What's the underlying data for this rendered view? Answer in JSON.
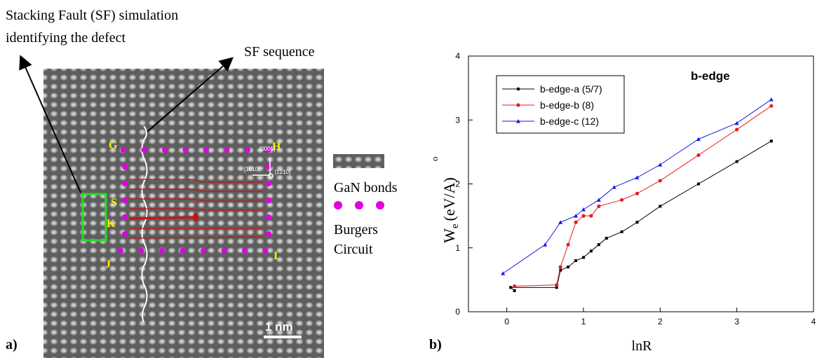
{
  "panel_a": {
    "caption_line1": "Stacking Fault (SF) simulation",
    "caption_line2": "identifying the defect",
    "sf_label": "SF sequence",
    "axis_up": "[0001]",
    "axis_left": "[1010]",
    "axis_right": "[1210]",
    "points": [
      "G",
      "H",
      "S",
      "K",
      "J",
      "I"
    ],
    "scale": "1 nm",
    "legend_bonds": "GaN bonds",
    "legend_circuit_1": "Burgers",
    "legend_circuit_2": "Circuit",
    "panel_label": "a)"
  },
  "chart_data": {
    "type": "line",
    "panel_label": "b)",
    "title": "b-edge",
    "x_label": "lnR",
    "y_label": {
      "main": "W",
      "sub": "e",
      "unit": "(eV/A)",
      "ring": "o"
    },
    "xlim": [
      -0.5,
      4
    ],
    "ylim": [
      0,
      4
    ],
    "xticks": [
      0,
      1,
      2,
      3,
      4
    ],
    "yticks": [
      0,
      1,
      2,
      3,
      4
    ],
    "legend": "upper left",
    "series": [
      {
        "name": "b-edge-a (5/7)",
        "color": "#000000",
        "marker": "square",
        "x": [
          0.1,
          0.05,
          0.65,
          0.7,
          0.8,
          0.9,
          1.0,
          1.1,
          1.2,
          1.3,
          1.5,
          1.7,
          2.0,
          2.5,
          3.0,
          3.45
        ],
        "values": [
          0.33,
          0.38,
          0.38,
          0.65,
          0.7,
          0.8,
          0.85,
          0.95,
          1.05,
          1.15,
          1.25,
          1.4,
          1.65,
          2.0,
          2.35,
          2.67
        ]
      },
      {
        "name": "b-edge-b (8)",
        "color": "#e02020",
        "marker": "circle",
        "x": [
          0.1,
          0.65,
          0.7,
          0.8,
          0.9,
          1.0,
          1.1,
          1.2,
          1.5,
          1.7,
          2.0,
          2.5,
          3.0,
          3.45
        ],
        "values": [
          0.4,
          0.42,
          0.7,
          1.05,
          1.4,
          1.5,
          1.5,
          1.65,
          1.75,
          1.85,
          2.05,
          2.45,
          2.85,
          3.22
        ]
      },
      {
        "name": "b-edge-c (12)",
        "color": "#1a1ae0",
        "marker": "triangle",
        "x": [
          -0.05,
          0.5,
          0.7,
          0.9,
          1.0,
          1.2,
          1.4,
          1.7,
          2.0,
          2.5,
          3.0,
          3.45
        ],
        "values": [
          0.6,
          1.05,
          1.4,
          1.5,
          1.6,
          1.75,
          1.95,
          2.1,
          2.3,
          2.7,
          2.95,
          3.32
        ]
      }
    ]
  }
}
